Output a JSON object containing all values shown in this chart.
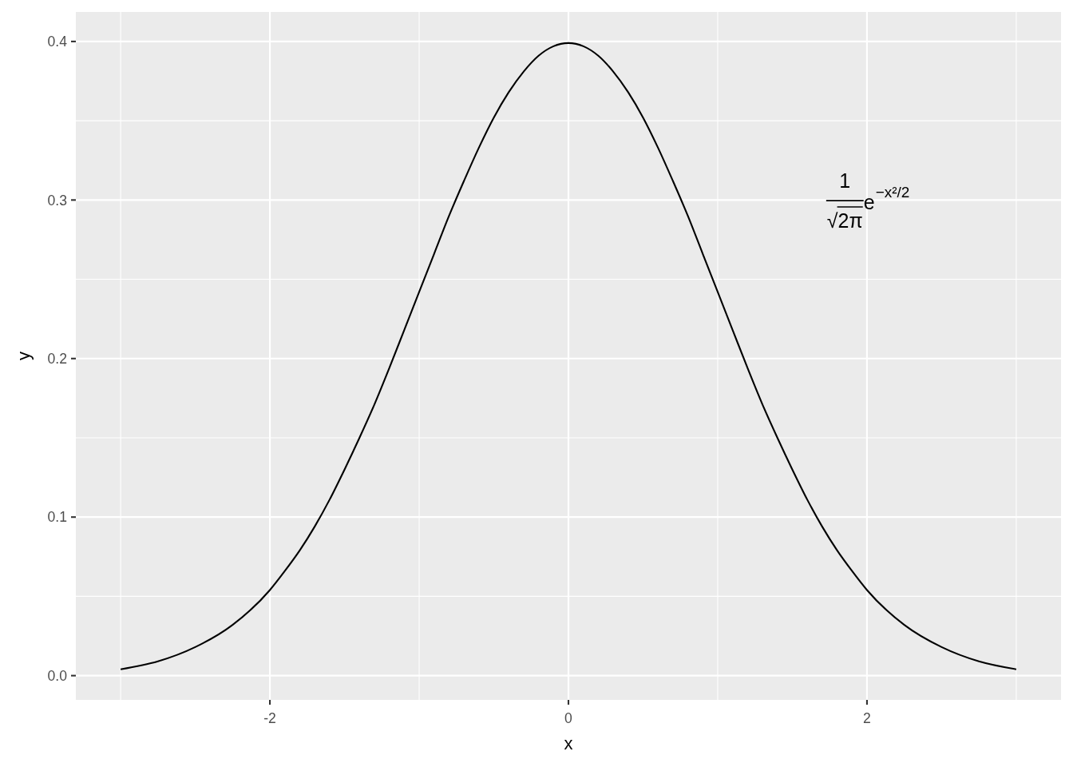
{
  "chart_data": {
    "type": "line",
    "x": [
      -3,
      -2.75,
      -2.5,
      -2.25,
      -2,
      -1.9,
      -1.8,
      -1.7,
      -1.6,
      -1.5,
      -1.4,
      -1.3,
      -1.2,
      -1.1,
      -1,
      -0.9,
      -0.8,
      -0.7,
      -0.6,
      -0.5,
      -0.4,
      -0.3,
      -0.2,
      -0.1,
      0,
      0.1,
      0.2,
      0.3,
      0.4,
      0.5,
      0.6,
      0.7,
      0.8,
      0.9,
      1,
      1.1,
      1.2,
      1.3,
      1.4,
      1.5,
      1.6,
      1.7,
      1.8,
      1.9,
      2,
      2.25,
      2.5,
      2.75,
      3
    ],
    "series": [
      {
        "color": "#000000",
        "values": [
          0.004,
          0.009,
          0.018,
          0.032,
          0.054,
          0.066,
          0.079,
          0.094,
          0.111,
          0.13,
          0.15,
          0.171,
          0.194,
          0.218,
          0.242,
          0.266,
          0.29,
          0.312,
          0.333,
          0.352,
          0.368,
          0.381,
          0.391,
          0.397,
          0.399,
          0.397,
          0.391,
          0.381,
          0.368,
          0.352,
          0.333,
          0.312,
          0.29,
          0.266,
          0.242,
          0.218,
          0.194,
          0.171,
          0.15,
          0.13,
          0.111,
          0.094,
          0.079,
          0.066,
          0.054,
          0.032,
          0.018,
          0.009,
          0.004
        ]
      }
    ],
    "xlabel": "x",
    "ylabel": "y",
    "xlim": [
      -3.3,
      3.3
    ],
    "ylim": [
      -0.0153,
      0.4186
    ],
    "xticks": [
      {
        "value": -3,
        "label": null
      },
      -2,
      {
        "value": -1,
        "label": null
      },
      0,
      {
        "value": 1,
        "label": null
      },
      2,
      {
        "value": 3,
        "label": null
      }
    ],
    "yticks": [
      {
        "value": 0,
        "label": "0.0"
      },
      {
        "value": 0.05,
        "label": null
      },
      0.1,
      {
        "value": 0.15,
        "label": null
      },
      0.2,
      {
        "value": 0.25,
        "label": null
      },
      0.3,
      {
        "value": 0.35,
        "label": null
      },
      0.4
    ],
    "grid": true,
    "annotations": [
      "1 √2π e$^{−x²/2}$"
    ]
  }
}
